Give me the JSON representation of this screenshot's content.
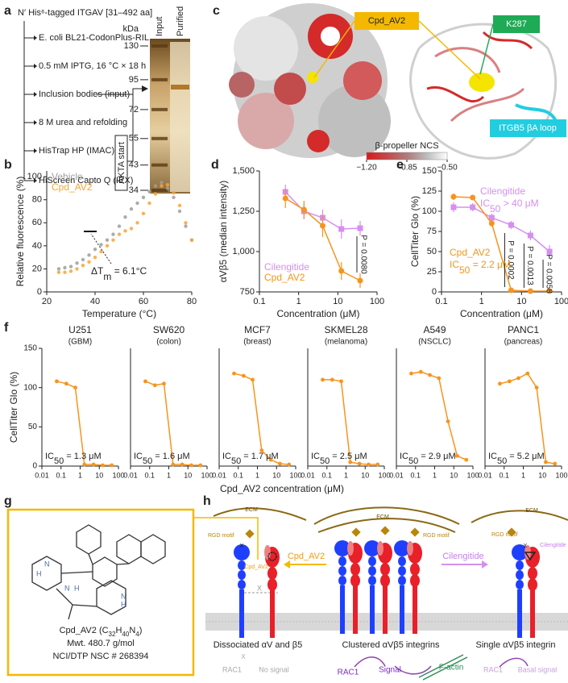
{
  "panel_labels": [
    "a",
    "b",
    "c",
    "d",
    "e",
    "f",
    "g",
    "h"
  ],
  "panel_a": {
    "title": "N′ His⁶-tagged ITGAV [31–492 aa]",
    "steps": [
      "E. coli BL21-CodonPlus-RIL",
      "0.5 mM IPTG, 16 °C × 18 h",
      "Inclusion bodies (input)",
      "8 M urea and refolding",
      "HisTrap HP (IMAC)",
      "HiScreen Capto Q (IEX)"
    ],
    "akta": "ÄKTA start",
    "kda": "kDa",
    "lanes": [
      "Input",
      "Purified"
    ],
    "markers": [
      130,
      95,
      72,
      55,
      43,
      34
    ]
  },
  "panel_c": {
    "callouts": [
      "Cpd_AV2",
      "K287",
      "ITGB5 βA loop"
    ],
    "colorbar_title": "β-propeller NCS",
    "colorbar_lim": [
      -1.2,
      -0.5
    ],
    "colorbar_ticks": [
      {
        "value": -1.2,
        "label": "−1.20"
      },
      {
        "value": -0.85,
        "label": "−0.85"
      },
      {
        "value": -0.5,
        "label": "−0.50"
      }
    ]
  },
  "chart_data": [
    {
      "type": "scatter",
      "xlabel": "Temperature (°C)",
      "ylabel": "Relative fluorescence (%)",
      "legend": "top-left",
      "x": [
        25,
        27.5,
        30,
        32.5,
        35,
        37.5,
        40,
        42.5,
        45,
        47.5,
        50,
        52.5,
        55,
        57.5,
        60,
        62.5,
        65,
        67.5,
        70,
        72.5,
        75,
        77.5,
        80
      ],
      "series": [
        {
          "name": "Vehicle",
          "color": "#9e9e9e",
          "values": [
            20,
            21,
            22,
            25,
            28,
            32,
            37,
            41,
            45,
            50,
            57,
            65,
            72,
            77,
            82,
            87,
            92,
            95,
            90,
            82,
            70,
            57,
            45
          ]
        },
        {
          "name": "Cpd_AV2",
          "color": "#f7a534",
          "values": [
            17,
            17,
            18,
            20,
            23,
            26,
            30,
            35,
            40,
            45,
            50,
            53,
            55,
            60,
            68,
            77,
            85,
            92,
            93,
            86,
            75,
            60,
            45
          ]
        }
      ],
      "xlim": [
        20,
        80
      ],
      "xticks": [
        20,
        40,
        60,
        80
      ],
      "ylim": [
        0,
        105
      ],
      "yticks": [
        0,
        20,
        40,
        60,
        80,
        100
      ],
      "annotation": [
        "ΔT",
        "m",
        " = 6.1°C"
      ]
    },
    {
      "type": "line",
      "xscale": "log",
      "xlabel": "Concentration (μM)",
      "ylabel": "αVβ5 (median intensity)",
      "legend": "bottom-left",
      "x": [
        0.46,
        1.37,
        4.1,
        12.3,
        37
      ],
      "series": [
        {
          "name": "Cilengitide",
          "color": "#d58ff0",
          "marker": "square",
          "values": [
            1370,
            1250,
            1210,
            1140,
            1145
          ],
          "errors": [
            45,
            50,
            50,
            60,
            45
          ]
        },
        {
          "name": "Cpd_AV2",
          "color": "#f7941d",
          "marker": "circle",
          "values": [
            1330,
            1260,
            1160,
            880,
            820
          ],
          "errors": [
            60,
            55,
            70,
            55,
            45
          ]
        }
      ],
      "xlim": [
        0.1,
        100
      ],
      "xticks": [
        0.1,
        1,
        10,
        100
      ],
      "ylim": [
        750,
        1500
      ],
      "yticks": [
        750,
        {
          "value": 1000,
          "label": "1,000"
        },
        {
          "value": 1250,
          "label": "1,250"
        },
        {
          "value": 1500,
          "label": "1,500"
        }
      ],
      "annotations": [
        "P = 0.0080"
      ]
    },
    {
      "type": "line",
      "xscale": "log",
      "xlabel": "Concentration (μM)",
      "ylabel": "CellTiter Glo (%)",
      "x": [
        0.2,
        0.6,
        1.8,
        5.5,
        16.7,
        50
      ],
      "series": [
        {
          "name": "Cilengitide",
          "color": "#d58ff0",
          "marker": "square",
          "values": [
            105,
            105,
            92,
            83,
            70,
            50
          ],
          "errors": [
            6,
            5,
            5,
            5,
            6,
            8
          ],
          "ic50": [
            "IC",
            "50",
            " > 40 μM"
          ]
        },
        {
          "name": "Cpd_AV2",
          "color": "#f7941d",
          "marker": "circle",
          "values": [
            118,
            117,
            85,
            2,
            1,
            1
          ],
          "errors": [
            4,
            3,
            4,
            1,
            1,
            1
          ],
          "ic50": [
            "IC",
            "50",
            " = 2.2 μM"
          ]
        }
      ],
      "xlim": [
        0.1,
        100
      ],
      "xticks": [
        0.1,
        1,
        10,
        100
      ],
      "ylim": [
        0,
        150
      ],
      "yticks": [
        0,
        25,
        50,
        75,
        100,
        125,
        150
      ],
      "annotations": [
        "P = 0.0002",
        "P = 0.0013",
        "P = 0.0058"
      ]
    },
    {
      "type": "line",
      "xscale": "log",
      "title": "U251",
      "subtitle": "(GBM)",
      "color": "#f7941d",
      "x": [
        0.06,
        0.19,
        0.56,
        1.67,
        5,
        15,
        45
      ],
      "values": [
        108,
        105,
        100,
        2,
        2,
        1,
        1
      ],
      "xlim": [
        0.01,
        100
      ],
      "xticks": [
        0.01,
        0.1,
        1,
        10,
        100
      ],
      "ylim": [
        0,
        150
      ],
      "yticks": [
        0,
        50,
        100,
        150
      ],
      "ic50": [
        "IC",
        "50",
        " = 1.3 μM"
      ]
    },
    {
      "type": "line",
      "xscale": "log",
      "title": "SW620",
      "subtitle": "(colon)",
      "color": "#f7941d",
      "x": [
        0.06,
        0.19,
        0.56,
        1.67,
        5,
        15,
        45
      ],
      "values": [
        108,
        103,
        105,
        2,
        2,
        1,
        1
      ],
      "xlim": [
        0.01,
        100
      ],
      "xticks": [
        0.01,
        0.1,
        1,
        10,
        100
      ],
      "ylim": [
        0,
        150
      ],
      "ic50": [
        "IC",
        "50",
        " = 1.6 μM"
      ]
    },
    {
      "type": "line",
      "xscale": "log",
      "title": "MCF7",
      "subtitle": "(breast)",
      "color": "#f7941d",
      "x": [
        0.06,
        0.19,
        0.56,
        1.67,
        5,
        15,
        45
      ],
      "values": [
        118,
        115,
        110,
        20,
        8,
        3,
        2
      ],
      "xlim": [
        0.01,
        100
      ],
      "xticks": [
        0.01,
        0.1,
        1,
        10,
        100
      ],
      "ylim": [
        0,
        150
      ],
      "ic50": [
        "IC",
        "50",
        " = 1.7 μM"
      ]
    },
    {
      "type": "line",
      "xscale": "log",
      "title": "SKMEL28",
      "subtitle": "(melanoma)",
      "color": "#f7941d",
      "x": [
        0.06,
        0.19,
        0.56,
        1.67,
        5,
        15,
        45
      ],
      "values": [
        110,
        110,
        108,
        5,
        3,
        2,
        2
      ],
      "xlim": [
        0.01,
        100
      ],
      "xticks": [
        0.01,
        0.1,
        1,
        10,
        100
      ],
      "ylim": [
        0,
        150
      ],
      "ic50": [
        "IC",
        "50",
        " = 2.5 μM"
      ]
    },
    {
      "type": "line",
      "xscale": "log",
      "title": "A549",
      "subtitle": "(NSCLC)",
      "color": "#f7941d",
      "x": [
        0.06,
        0.19,
        0.56,
        1.67,
        5,
        15,
        45
      ],
      "values": [
        118,
        120,
        116,
        112,
        57,
        13,
        8
      ],
      "xlim": [
        0.01,
        100
      ],
      "xticks": [
        0.01,
        0.1,
        1,
        10,
        100
      ],
      "ylim": [
        0,
        150
      ],
      "ic50": [
        "IC",
        "50",
        " = 2.9 μM"
      ]
    },
    {
      "type": "line",
      "xscale": "log",
      "title": "PANC1",
      "subtitle": "(pancreas)",
      "color": "#f7941d",
      "x": [
        0.06,
        0.19,
        0.56,
        1.67,
        5,
        15,
        45
      ],
      "values": [
        105,
        108,
        112,
        118,
        100,
        5,
        3
      ],
      "xlim": [
        0.01,
        100
      ],
      "xticks": [
        0.01,
        0.1,
        1,
        10,
        100
      ],
      "ylim": [
        0,
        150
      ],
      "ic50": [
        "IC",
        "50",
        " = 5.2 μM"
      ]
    }
  ],
  "panel_f": {
    "xlabel": "Cpd_AV2 concentration (μM)",
    "ylabel": "CellTiter Glo (%)"
  },
  "panel_g": {
    "formula": [
      "Cpd_AV2 (C",
      "32",
      "H",
      "40",
      "N",
      "4",
      ")"
    ],
    "mwt": "Mwt. 480.7 g/mol",
    "nsc": "NCI/DTP NSC # 268394",
    "atoms": [
      "N",
      "H",
      "N",
      "H",
      "N",
      "H"
    ]
  },
  "panel_h": {
    "labels": [
      "ECM",
      "RGD motif",
      "X",
      "Cpd_AV2",
      "X",
      "Cpd_AV2",
      "ECM",
      "RGD motif",
      "Cilengitide",
      "ECM",
      "RGD motif",
      "X",
      "Cilengitide",
      "Dissociated αV and β5",
      "Clustered αVβ5 integrins",
      "Single αVβ5 integrin",
      "X",
      "RAC1",
      "No signal",
      "RAC1",
      "Signal",
      "F-actin",
      "RAC1",
      "Basal signal"
    ]
  }
}
